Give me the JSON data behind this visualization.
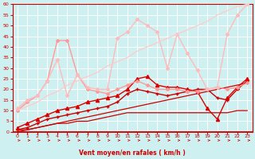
{
  "xlabel": "Vent moyen/en rafales ( km/h )",
  "xlim": [
    -0.5,
    23.5
  ],
  "ylim": [
    0,
    60
  ],
  "xticks": [
    0,
    1,
    2,
    3,
    4,
    5,
    6,
    7,
    8,
    9,
    10,
    11,
    12,
    13,
    14,
    15,
    16,
    17,
    18,
    19,
    20,
    21,
    22,
    23
  ],
  "yticks": [
    0,
    5,
    10,
    15,
    20,
    25,
    30,
    35,
    40,
    45,
    50,
    55,
    60
  ],
  "bg_color": "#cff0f0",
  "grid_color": "#ffffff",
  "series": [
    {
      "x": [
        0,
        1,
        2,
        3,
        4,
        5,
        6,
        7,
        8,
        9,
        10,
        11,
        12,
        13,
        14,
        15,
        16,
        17,
        18,
        19,
        20,
        21,
        22,
        23
      ],
      "y": [
        0,
        1,
        2,
        3,
        4,
        5,
        6,
        7,
        8,
        9,
        10,
        11,
        12,
        13,
        14,
        15,
        16,
        17,
        18,
        19,
        20,
        21,
        22,
        23
      ],
      "color": "#cc0000",
      "lw": 0.9,
      "marker": null,
      "ms": 0
    },
    {
      "x": [
        0,
        1,
        2,
        3,
        4,
        5,
        6,
        7,
        8,
        9,
        10,
        11,
        12,
        13,
        14,
        15,
        16,
        17,
        18,
        19,
        20,
        21,
        22,
        23
      ],
      "y": [
        1,
        1,
        2,
        3,
        4,
        4,
        5,
        5,
        6,
        7,
        8,
        9,
        9,
        9,
        9,
        9,
        9,
        9,
        9,
        9,
        9,
        9,
        10,
        10
      ],
      "color": "#cc0000",
      "lw": 0.9,
      "marker": null,
      "ms": 0
    },
    {
      "x": [
        0,
        1,
        2,
        3,
        4,
        5,
        6,
        7,
        8,
        9,
        10,
        11,
        12,
        13,
        14,
        15,
        16,
        17,
        18,
        19,
        20,
        21,
        22,
        23
      ],
      "y": [
        1,
        2,
        4,
        6,
        7,
        8,
        9,
        10,
        11,
        12,
        14,
        18,
        20,
        19,
        18,
        17,
        18,
        19,
        20,
        20,
        16,
        15,
        20,
        24
      ],
      "color": "#cc0000",
      "lw": 1.0,
      "marker": "+",
      "ms": 3
    },
    {
      "x": [
        0,
        1,
        2,
        3,
        4,
        5,
        6,
        7,
        8,
        9,
        10,
        11,
        12,
        13,
        14,
        15,
        16,
        17,
        18,
        19,
        20,
        21,
        22,
        23
      ],
      "y": [
        2,
        4,
        6,
        8,
        10,
        11,
        12,
        14,
        15,
        16,
        17,
        20,
        25,
        26,
        22,
        21,
        21,
        20,
        19,
        11,
        6,
        16,
        21,
        25
      ],
      "color": "#dd0000",
      "lw": 1.0,
      "marker": "^",
      "ms": 3
    },
    {
      "x": [
        0,
        1,
        2,
        3,
        4,
        5,
        6,
        7,
        8,
        9,
        10,
        11,
        12,
        13,
        14,
        15,
        16,
        17,
        18,
        19,
        20,
        21,
        22,
        23
      ],
      "y": [
        10,
        14,
        17,
        24,
        43,
        43,
        27,
        20,
        19,
        18,
        20,
        22,
        24,
        22,
        20,
        20,
        20,
        19,
        19,
        20,
        21,
        20,
        21,
        23
      ],
      "color": "#ff9999",
      "lw": 1.0,
      "marker": "D",
      "ms": 2
    },
    {
      "x": [
        0,
        1,
        2,
        3,
        4,
        5,
        6,
        7,
        8,
        9,
        10,
        11,
        12,
        13,
        14,
        15,
        16,
        17,
        18,
        19,
        20,
        21,
        22,
        23
      ],
      "y": [
        11,
        15,
        17,
        24,
        34,
        17,
        27,
        21,
        20,
        20,
        44,
        47,
        53,
        50,
        47,
        30,
        46,
        37,
        29,
        20,
        21,
        46,
        55,
        60
      ],
      "color": "#ffbbbb",
      "lw": 1.0,
      "marker": "D",
      "ms": 2
    },
    {
      "x": [
        0,
        1,
        2,
        3,
        4,
        5,
        6,
        7,
        8,
        9,
        10,
        11,
        12,
        13,
        14,
        15,
        16,
        17,
        18,
        19,
        20,
        21,
        22,
        23
      ],
      "y": [
        10,
        12,
        14,
        17,
        19,
        22,
        24,
        26,
        28,
        31,
        33,
        35,
        38,
        40,
        42,
        44,
        46,
        48,
        50,
        52,
        55,
        57,
        59,
        60
      ],
      "color": "#ffcccc",
      "lw": 1.0,
      "marker": null,
      "ms": 0
    }
  ],
  "arrow_color": "#cc0000",
  "tick_color": "#cc0000",
  "label_color": "#cc0000",
  "axis_color": "#cc0000"
}
